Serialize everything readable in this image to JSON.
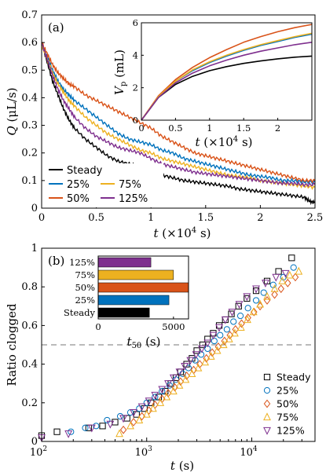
{
  "chart_data": [
    {
      "panel": "(a)",
      "type": "line",
      "xlabel": "t (×10⁴ s)",
      "ylabel": "Q (μL/s)",
      "xlim": [
        0,
        2.5
      ],
      "ylim": [
        0,
        0.7
      ],
      "xticks": [
        "0",
        "0.5",
        "1",
        "1.5",
        "2",
        "2.5"
      ],
      "yticks": [
        "0",
        "0.1",
        "0.2",
        "0.3",
        "0.4",
        "0.5",
        "0.6",
        "0.7"
      ],
      "legend": [
        "Steady",
        "25%",
        "75%",
        "50%",
        "125%"
      ],
      "legend_placement": "bottom-left",
      "series": [
        {
          "name": "Steady",
          "color": "#000000",
          "x": [
            0,
            0.05,
            0.1,
            0.15,
            0.2,
            0.25,
            0.3,
            0.4,
            0.5,
            0.6,
            0.7,
            0.8,
            0.9,
            1.0,
            1.1,
            1.2,
            1.3,
            1.4,
            1.5,
            1.6,
            1.7,
            1.8,
            1.9,
            2.0,
            2.1,
            2.2,
            2.3,
            2.4,
            2.45,
            2.5
          ],
          "y": [
            0.6,
            0.53,
            0.46,
            0.41,
            0.36,
            0.32,
            0.29,
            0.25,
            0.22,
            0.19,
            0.17,
            0.16,
            0.15,
            0.14,
            0.12,
            0.11,
            0.1,
            0.095,
            0.09,
            0.085,
            0.08,
            0.07,
            0.065,
            0.06,
            0.055,
            0.05,
            0.045,
            0.04,
            0.025,
            0.02
          ]
        },
        {
          "name": "25%",
          "color": "#0072BD",
          "x": [
            0,
            0.05,
            0.1,
            0.15,
            0.2,
            0.25,
            0.3,
            0.4,
            0.5,
            0.6,
            0.7,
            0.8,
            0.9,
            1.0,
            1.1,
            1.2,
            1.3,
            1.4,
            1.5,
            1.6,
            1.7,
            1.8,
            1.9,
            2.0,
            2.1,
            2.2,
            2.3,
            2.4,
            2.5
          ],
          "y": [
            0.59,
            0.55,
            0.5,
            0.46,
            0.43,
            0.41,
            0.39,
            0.36,
            0.33,
            0.3,
            0.27,
            0.25,
            0.24,
            0.23,
            0.21,
            0.2,
            0.18,
            0.17,
            0.16,
            0.15,
            0.14,
            0.13,
            0.12,
            0.115,
            0.11,
            0.1,
            0.1,
            0.095,
            0.095
          ]
        },
        {
          "name": "50%",
          "color": "#D95319",
          "x": [
            0,
            0.05,
            0.1,
            0.15,
            0.2,
            0.25,
            0.3,
            0.4,
            0.5,
            0.6,
            0.7,
            0.8,
            0.9,
            1.0,
            1.1,
            1.2,
            1.3,
            1.4,
            1.5,
            1.6,
            1.7,
            1.8,
            1.9,
            2.0,
            2.1,
            2.2,
            2.3,
            2.4,
            2.5
          ],
          "y": [
            0.6,
            0.56,
            0.52,
            0.49,
            0.47,
            0.45,
            0.44,
            0.41,
            0.39,
            0.37,
            0.35,
            0.33,
            0.31,
            0.29,
            0.26,
            0.24,
            0.22,
            0.2,
            0.19,
            0.18,
            0.17,
            0.16,
            0.15,
            0.14,
            0.13,
            0.12,
            0.11,
            0.1,
            0.1
          ]
        },
        {
          "name": "75%",
          "color": "#EDB120",
          "x": [
            0,
            0.05,
            0.1,
            0.15,
            0.2,
            0.25,
            0.3,
            0.4,
            0.5,
            0.6,
            0.7,
            0.8,
            0.9,
            1.0,
            1.1,
            1.2,
            1.3,
            1.4,
            1.5,
            1.6,
            1.7,
            1.8,
            1.9,
            2.0,
            2.1,
            2.2,
            2.3,
            2.4,
            2.5
          ],
          "y": [
            0.59,
            0.54,
            0.49,
            0.45,
            0.42,
            0.39,
            0.37,
            0.33,
            0.3,
            0.27,
            0.25,
            0.23,
            0.21,
            0.2,
            0.18,
            0.17,
            0.16,
            0.15,
            0.14,
            0.13,
            0.12,
            0.115,
            0.11,
            0.1,
            0.095,
            0.09,
            0.085,
            0.08,
            0.075
          ]
        },
        {
          "name": "125%",
          "color": "#7E2F8E",
          "x": [
            0,
            0.05,
            0.1,
            0.15,
            0.2,
            0.25,
            0.3,
            0.4,
            0.5,
            0.6,
            0.7,
            0.8,
            0.9,
            1.0,
            1.1,
            1.2,
            1.3,
            1.4,
            1.5,
            1.6,
            1.7,
            1.8,
            1.9,
            2.0,
            2.1,
            2.2,
            2.3,
            2.4,
            2.5
          ],
          "y": [
            0.6,
            0.54,
            0.48,
            0.43,
            0.39,
            0.36,
            0.33,
            0.29,
            0.26,
            0.24,
            0.22,
            0.21,
            0.2,
            0.18,
            0.16,
            0.15,
            0.14,
            0.13,
            0.125,
            0.12,
            0.115,
            0.11,
            0.105,
            0.1,
            0.095,
            0.09,
            0.09,
            0.085,
            0.085
          ]
        }
      ]
    },
    {
      "panel": "inset (a)",
      "type": "line",
      "xlabel": "t (×10⁴ s)",
      "ylabel": "Vp (mL)",
      "xlim": [
        0,
        2.5
      ],
      "ylim": [
        0,
        6
      ],
      "xticks": [
        "0",
        "0.5",
        "1",
        "1.5",
        "2"
      ],
      "yticks": [
        "0",
        "2",
        "4",
        "6"
      ],
      "series": [
        {
          "name": "Steady",
          "color": "#000000",
          "x": [
            0,
            0.25,
            0.5,
            0.75,
            1.0,
            1.25,
            1.5,
            1.75,
            2.0,
            2.25,
            2.5
          ],
          "y": [
            0,
            1.4,
            2.2,
            2.7,
            3.05,
            3.3,
            3.5,
            3.65,
            3.78,
            3.88,
            3.95
          ]
        },
        {
          "name": "25%",
          "color": "#0072BD",
          "x": [
            0,
            0.25,
            0.5,
            0.75,
            1.0,
            1.25,
            1.5,
            1.75,
            2.0,
            2.25,
            2.5
          ],
          "y": [
            0,
            1.45,
            2.4,
            3.05,
            3.55,
            3.95,
            4.3,
            4.6,
            4.85,
            5.1,
            5.3
          ]
        },
        {
          "name": "50%",
          "color": "#D95319",
          "x": [
            0,
            0.25,
            0.5,
            0.75,
            1.0,
            1.25,
            1.5,
            1.75,
            2.0,
            2.25,
            2.5
          ],
          "y": [
            0,
            1.5,
            2.5,
            3.25,
            3.85,
            4.35,
            4.8,
            5.15,
            5.45,
            5.7,
            5.9
          ]
        },
        {
          "name": "75%",
          "color": "#EDB120",
          "x": [
            0,
            0.25,
            0.5,
            0.75,
            1.0,
            1.25,
            1.5,
            1.75,
            2.0,
            2.25,
            2.5
          ],
          "y": [
            0,
            1.45,
            2.4,
            3.1,
            3.6,
            4.0,
            4.35,
            4.65,
            4.9,
            5.15,
            5.35
          ]
        },
        {
          "name": "125%",
          "color": "#7E2F8E",
          "x": [
            0,
            0.25,
            0.5,
            0.75,
            1.0,
            1.25,
            1.5,
            1.75,
            2.0,
            2.25,
            2.5
          ],
          "y": [
            0,
            1.4,
            2.3,
            2.9,
            3.35,
            3.7,
            4.0,
            4.25,
            4.45,
            4.65,
            4.8
          ]
        }
      ]
    },
    {
      "panel": "(b)",
      "type": "scatter",
      "xlabel": "t (s)",
      "ylabel": "Ratio clogged",
      "xscale": "log",
      "xlim": [
        100,
        40000
      ],
      "ylim": [
        0,
        1
      ],
      "xticks": [
        "10²",
        "10³",
        "10⁴"
      ],
      "yticks": [
        "0",
        "0.2",
        "0.4",
        "0.6",
        "0.8",
        "1"
      ],
      "reference_line_y": 0.5,
      "legend": [
        "Steady",
        "25%",
        "50%",
        "75%",
        "125%"
      ],
      "legend_placement": "bottom-right",
      "series": [
        {
          "name": "Steady",
          "color": "#000000",
          "marker": "square",
          "x": [
            100,
            140,
            280,
            380,
            500,
            650,
            800,
            950,
            1100,
            1300,
            1500,
            1700,
            1900,
            2100,
            2400,
            2700,
            3000,
            3400,
            3800,
            4300,
            4900,
            5600,
            6400,
            7500,
            9000,
            11000,
            14000,
            18000,
            24000
          ],
          "y": [
            0.03,
            0.05,
            0.07,
            0.08,
            0.1,
            0.12,
            0.14,
            0.17,
            0.2,
            0.23,
            0.26,
            0.3,
            0.33,
            0.36,
            0.4,
            0.43,
            0.47,
            0.5,
            0.53,
            0.56,
            0.6,
            0.63,
            0.66,
            0.7,
            0.74,
            0.78,
            0.83,
            0.88,
            0.95
          ]
        },
        {
          "name": "25%",
          "color": "#0072BD",
          "marker": "circle",
          "x": [
            190,
            260,
            330,
            420,
            560,
            700,
            850,
            1000,
            1200,
            1400,
            1650,
            1900,
            2200,
            2500,
            2900,
            3300,
            3800,
            4400,
            5000,
            5800,
            6700,
            7800,
            9200,
            11000,
            13000,
            16000,
            20000,
            25000
          ],
          "y": [
            0.05,
            0.07,
            0.08,
            0.11,
            0.13,
            0.15,
            0.17,
            0.2,
            0.23,
            0.26,
            0.29,
            0.32,
            0.35,
            0.38,
            0.42,
            0.45,
            0.48,
            0.52,
            0.55,
            0.58,
            0.62,
            0.65,
            0.69,
            0.73,
            0.77,
            0.81,
            0.85,
            0.9
          ]
        },
        {
          "name": "50%",
          "color": "#D95319",
          "marker": "diamond",
          "x": [
            600,
            750,
            900,
            1050,
            1200,
            1400,
            1600,
            1850,
            2100,
            2400,
            2800,
            3200,
            3700,
            4200,
            4800,
            5500,
            6200,
            7000,
            8000,
            9200,
            10500,
            12000,
            14000,
            16500,
            19000,
            22000,
            26000
          ],
          "y": [
            0.06,
            0.1,
            0.13,
            0.16,
            0.19,
            0.22,
            0.25,
            0.28,
            0.31,
            0.34,
            0.37,
            0.4,
            0.43,
            0.46,
            0.49,
            0.52,
            0.55,
            0.58,
            0.61,
            0.64,
            0.67,
            0.7,
            0.73,
            0.76,
            0.79,
            0.82,
            0.85
          ]
        },
        {
          "name": "75%",
          "color": "#EDB120",
          "marker": "triangle-up",
          "x": [
            550,
            700,
            850,
            1000,
            1150,
            1350,
            1550,
            1800,
            2050,
            2350,
            2700,
            3100,
            3600,
            4100,
            4700,
            5400,
            6100,
            6900,
            7900,
            9100,
            10400,
            12000,
            14000,
            16500,
            19500,
            23000,
            28000
          ],
          "y": [
            0.04,
            0.08,
            0.11,
            0.14,
            0.17,
            0.2,
            0.23,
            0.26,
            0.29,
            0.32,
            0.35,
            0.38,
            0.41,
            0.44,
            0.47,
            0.5,
            0.53,
            0.56,
            0.59,
            0.63,
            0.67,
            0.71,
            0.75,
            0.79,
            0.83,
            0.86,
            0.88
          ]
        },
        {
          "name": "125%",
          "color": "#7E2F8E",
          "marker": "triangle-down",
          "x": [
            100,
            180,
            300,
            450,
            600,
            750,
            900,
            1050,
            1200,
            1400,
            1600,
            1800,
            2050,
            2300,
            2600,
            2950,
            3350,
            3800,
            4300,
            4900,
            5600,
            6500,
            7600,
            9000,
            11000,
            13500,
            17000,
            21000
          ],
          "y": [
            0.02,
            0.04,
            0.07,
            0.09,
            0.12,
            0.15,
            0.18,
            0.21,
            0.24,
            0.27,
            0.3,
            0.33,
            0.36,
            0.39,
            0.42,
            0.45,
            0.48,
            0.51,
            0.55,
            0.59,
            0.63,
            0.67,
            0.71,
            0.75,
            0.79,
            0.82,
            0.85,
            0.87
          ]
        }
      ]
    },
    {
      "panel": "inset (b)",
      "type": "bar",
      "orientation": "horizontal",
      "xlabel": "t50 (s)",
      "xlim": [
        0,
        6000
      ],
      "xticks": [
        "0",
        "5000"
      ],
      "categories": [
        "125%",
        "75%",
        "50%",
        "25%",
        "Steady"
      ],
      "values": [
        3500,
        5000,
        6000,
        4700,
        3400
      ],
      "colors": [
        "#7E2F8E",
        "#EDB120",
        "#D95319",
        "#0072BD",
        "#000000"
      ]
    }
  ],
  "figure_text": {
    "panel_a_label": "(a)",
    "panel_b_label": "(b)",
    "a_xlabel_var": "t",
    "a_xlabel_unit": " (×10",
    "a_xlabel_exp": "4",
    "a_xlabel_tail": " s)",
    "a_ylabel_var": "Q",
    "a_ylabel_unit": " (μL/s)",
    "ia_ylabel_var": "V",
    "ia_ylabel_sub": "p",
    "ia_ylabel_unit": " (mL)",
    "b_xlabel_var": "t",
    "b_xlabel_unit": " (s)",
    "b_ylabel": "Ratio clogged",
    "ib_xlabel_var": "t",
    "ib_xlabel_sub": "50",
    "ib_xlabel_unit": " (s)",
    "xtick_base": "10",
    "xtick_exps": [
      "2",
      "3",
      "4"
    ]
  }
}
